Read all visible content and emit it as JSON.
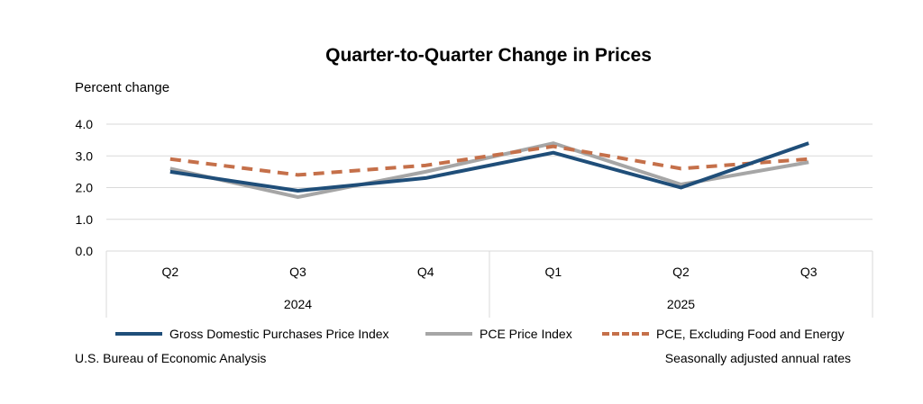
{
  "chart_data": {
    "type": "line",
    "title": "Quarter-to-Quarter Change in Prices",
    "ylabel": "Percent change",
    "xlabel": "",
    "categories": [
      "Q2",
      "Q3",
      "Q4",
      "Q1",
      "Q2",
      "Q3"
    ],
    "year_groups": [
      {
        "label": "2024",
        "count": 3
      },
      {
        "label": "2025",
        "count": 3
      }
    ],
    "ylim": [
      0,
      4
    ],
    "yticks": [
      "0.0",
      "1.0",
      "2.0",
      "3.0",
      "4.0"
    ],
    "grid": true,
    "legend_position": "bottom",
    "series": [
      {
        "name": "Gross Domestic Purchases Price Index",
        "values": [
          2.5,
          1.9,
          2.3,
          3.1,
          2.0,
          3.4
        ],
        "color": "#1f4e79",
        "dash": "solid"
      },
      {
        "name": "PCE Price Index",
        "values": [
          2.6,
          1.7,
          2.5,
          3.4,
          2.1,
          2.8
        ],
        "color": "#a6a6a6",
        "dash": "solid"
      },
      {
        "name": "PCE, Excluding Food and Energy",
        "values": [
          2.9,
          2.4,
          2.7,
          3.3,
          2.6,
          2.9
        ],
        "color": "#c5704a",
        "dash": "dashed"
      }
    ]
  },
  "footer": {
    "source": "U.S. Bureau of Economic Analysis",
    "note": "Seasonally adjusted annual rates"
  }
}
